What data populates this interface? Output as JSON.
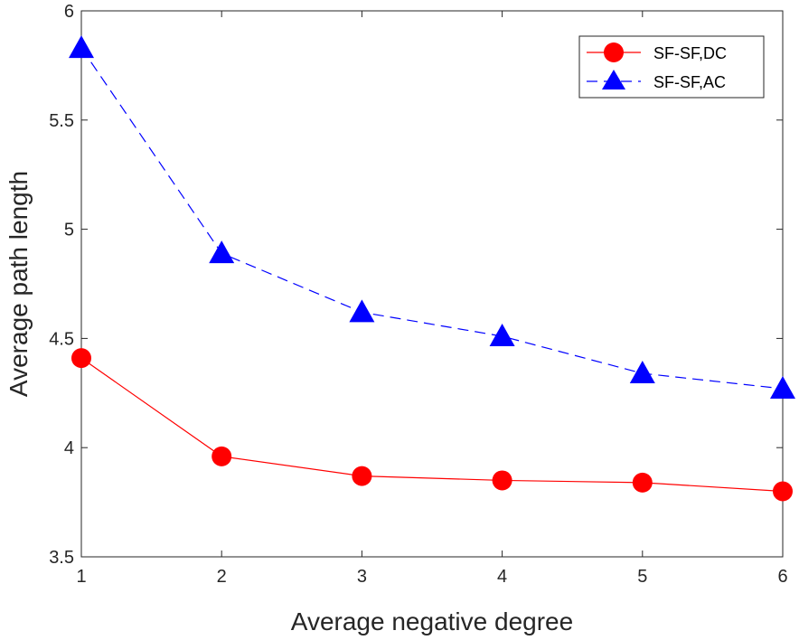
{
  "chart_data": {
    "type": "line",
    "title": "",
    "xlabel": "Average negative degree",
    "ylabel": "Average path length",
    "x": [
      1,
      2,
      3,
      4,
      5,
      6
    ],
    "xlim": [
      1,
      6
    ],
    "ylim": [
      3.5,
      6
    ],
    "xticks": [
      "1",
      "2",
      "3",
      "4",
      "5",
      "6"
    ],
    "yticks": [
      "3.5",
      "4",
      "4.5",
      "5",
      "5.5",
      "6"
    ],
    "grid": false,
    "legend_position": "top-right",
    "series": [
      {
        "name": "SF-SF,DC",
        "values": [
          4.41,
          3.96,
          3.87,
          3.85,
          3.84,
          3.8
        ],
        "color": "#ff0000",
        "line_style": "solid",
        "marker": "circle"
      },
      {
        "name": "SF-SF,AC",
        "values": [
          5.83,
          4.89,
          4.62,
          4.51,
          4.34,
          4.27
        ],
        "color": "#0000ff",
        "line_style": "dashed",
        "marker": "triangle"
      }
    ]
  }
}
